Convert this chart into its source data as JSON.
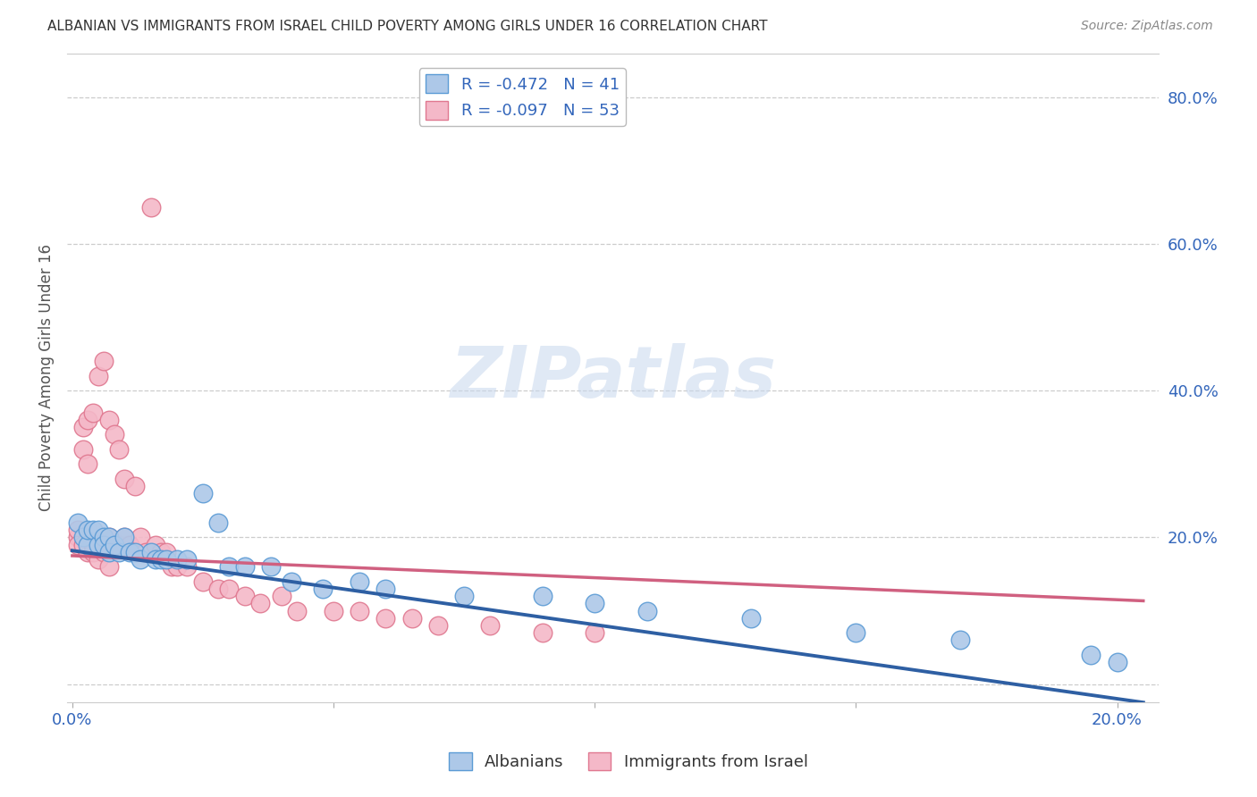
{
  "title": "ALBANIAN VS IMMIGRANTS FROM ISRAEL CHILD POVERTY AMONG GIRLS UNDER 16 CORRELATION CHART",
  "source": "Source: ZipAtlas.com",
  "ylabel": "Child Poverty Among Girls Under 16",
  "xlim": [
    -0.001,
    0.208
  ],
  "ylim": [
    -0.025,
    0.86
  ],
  "x_ticks": [
    0.0,
    0.05,
    0.1,
    0.15,
    0.2
  ],
  "x_tick_labels": [
    "0.0%",
    "",
    "",
    "",
    "20.0%"
  ],
  "y_ticks_right": [
    0.0,
    0.2,
    0.4,
    0.6,
    0.8
  ],
  "y_tick_labels_right": [
    "",
    "20.0%",
    "40.0%",
    "60.0%",
    "80.0%"
  ],
  "legend_label1": "R = -0.472   N = 41",
  "legend_label2": "R = -0.097   N = 53",
  "legend_label_bottom1": "Albanians",
  "legend_label_bottom2": "Immigrants from Israel",
  "color_albanian_face": "#adc8e8",
  "color_albanian_edge": "#5b9bd5",
  "color_israel_face": "#f4b8c8",
  "color_israel_edge": "#e07890",
  "color_albanian_line": "#2e5fa3",
  "color_israel_line": "#d06080",
  "watermark_text": "ZIPatlas",
  "albanian_x": [
    0.001,
    0.002,
    0.003,
    0.003,
    0.004,
    0.005,
    0.005,
    0.006,
    0.006,
    0.007,
    0.007,
    0.008,
    0.009,
    0.01,
    0.011,
    0.012,
    0.013,
    0.015,
    0.016,
    0.017,
    0.018,
    0.02,
    0.022,
    0.025,
    0.028,
    0.03,
    0.033,
    0.038,
    0.042,
    0.048,
    0.055,
    0.06,
    0.075,
    0.09,
    0.1,
    0.11,
    0.13,
    0.15,
    0.17,
    0.195,
    0.2
  ],
  "albanian_y": [
    0.22,
    0.2,
    0.19,
    0.21,
    0.21,
    0.19,
    0.21,
    0.2,
    0.19,
    0.2,
    0.18,
    0.19,
    0.18,
    0.2,
    0.18,
    0.18,
    0.17,
    0.18,
    0.17,
    0.17,
    0.17,
    0.17,
    0.17,
    0.26,
    0.22,
    0.16,
    0.16,
    0.16,
    0.14,
    0.13,
    0.14,
    0.13,
    0.12,
    0.12,
    0.11,
    0.1,
    0.09,
    0.07,
    0.06,
    0.04,
    0.03
  ],
  "israel_x": [
    0.001,
    0.001,
    0.001,
    0.002,
    0.002,
    0.002,
    0.003,
    0.003,
    0.003,
    0.004,
    0.004,
    0.004,
    0.005,
    0.005,
    0.005,
    0.006,
    0.006,
    0.006,
    0.007,
    0.007,
    0.007,
    0.008,
    0.008,
    0.009,
    0.009,
    0.01,
    0.01,
    0.011,
    0.012,
    0.013,
    0.014,
    0.015,
    0.016,
    0.017,
    0.018,
    0.019,
    0.02,
    0.022,
    0.025,
    0.028,
    0.03,
    0.033,
    0.036,
    0.04,
    0.043,
    0.05,
    0.055,
    0.06,
    0.065,
    0.07,
    0.08,
    0.09,
    0.1
  ],
  "israel_y": [
    0.2,
    0.21,
    0.19,
    0.32,
    0.35,
    0.19,
    0.3,
    0.36,
    0.18,
    0.37,
    0.19,
    0.18,
    0.42,
    0.19,
    0.17,
    0.44,
    0.19,
    0.18,
    0.36,
    0.2,
    0.16,
    0.34,
    0.19,
    0.32,
    0.19,
    0.28,
    0.2,
    0.19,
    0.27,
    0.2,
    0.18,
    0.65,
    0.19,
    0.18,
    0.18,
    0.16,
    0.16,
    0.16,
    0.14,
    0.13,
    0.13,
    0.12,
    0.11,
    0.12,
    0.1,
    0.1,
    0.1,
    0.09,
    0.09,
    0.08,
    0.08,
    0.07,
    0.07
  ]
}
